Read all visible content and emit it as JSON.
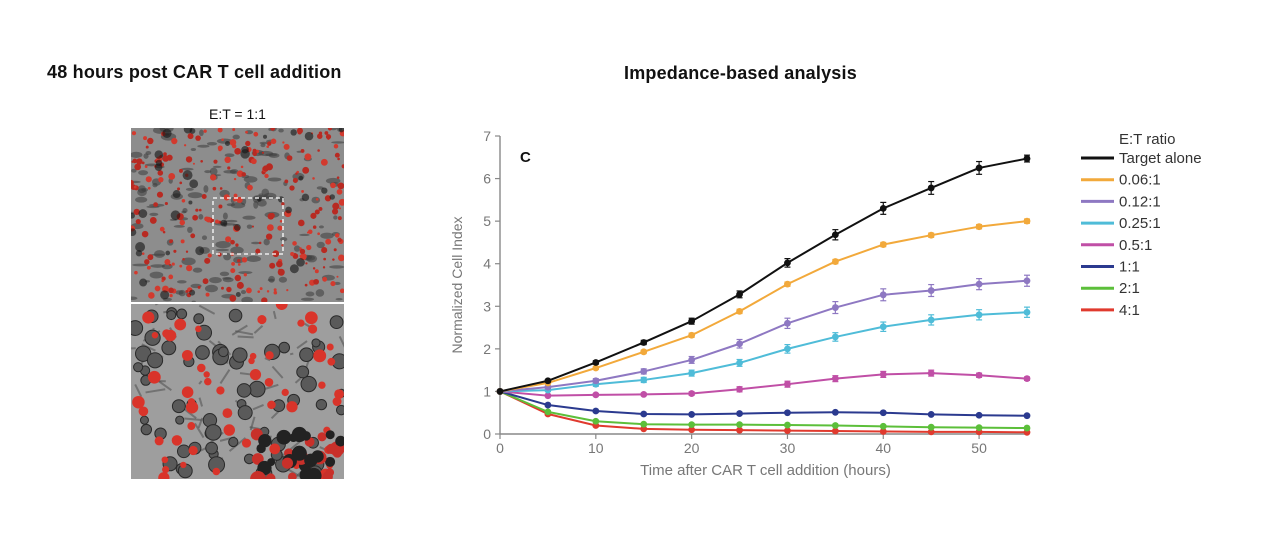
{
  "left_panel": {
    "title": "48 hours post CAR T cell addition",
    "condition_label": "E:T = 1:1"
  },
  "right_panel": {
    "title": "Impedance-based analysis"
  },
  "chart_data": {
    "type": "line",
    "panel_label": "C",
    "xlabel": "Time after CAR T cell addition (hours)",
    "ylabel": "Normalized Cell Index",
    "xlim": [
      0,
      55
    ],
    "ylim": [
      0,
      7
    ],
    "xticks": [
      0,
      10,
      20,
      30,
      40,
      50
    ],
    "yticks": [
      0,
      1,
      2,
      3,
      4,
      5,
      6,
      7
    ],
    "legend_title": "E:T ratio",
    "legend_position": "right",
    "x": [
      0,
      5,
      10,
      15,
      20,
      25,
      30,
      35,
      40,
      45,
      50,
      55
    ],
    "series": [
      {
        "name": "Target alone",
        "color": "#111111",
        "values": [
          1.0,
          1.25,
          1.68,
          2.15,
          2.65,
          3.28,
          4.02,
          4.68,
          5.3,
          5.78,
          6.25,
          6.47
        ],
        "errors": [
          0,
          0.03,
          0.04,
          0.05,
          0.07,
          0.08,
          0.1,
          0.12,
          0.14,
          0.15,
          0.15,
          0.08
        ]
      },
      {
        "name": "0.06:1",
        "color": "#f2a93b",
        "values": [
          1.0,
          1.2,
          1.55,
          1.93,
          2.32,
          2.88,
          3.52,
          4.05,
          4.45,
          4.67,
          4.87,
          5.0
        ],
        "errors": [
          0,
          0.02,
          0.03,
          0.04,
          0.05,
          0.05,
          0.05,
          0.05,
          0.05,
          0.05,
          0.05,
          0.05
        ]
      },
      {
        "name": "0.12:1",
        "color": "#8e78c2",
        "values": [
          1.0,
          1.1,
          1.25,
          1.47,
          1.74,
          2.12,
          2.6,
          2.97,
          3.27,
          3.37,
          3.52,
          3.6
        ],
        "errors": [
          0,
          0.03,
          0.05,
          0.06,
          0.08,
          0.1,
          0.12,
          0.14,
          0.14,
          0.14,
          0.13,
          0.13
        ]
      },
      {
        "name": "0.25:1",
        "color": "#4fbcd8",
        "values": [
          1.0,
          1.03,
          1.17,
          1.27,
          1.43,
          1.67,
          2.0,
          2.28,
          2.52,
          2.68,
          2.8,
          2.86
        ],
        "errors": [
          0,
          0.03,
          0.05,
          0.06,
          0.07,
          0.08,
          0.1,
          0.1,
          0.11,
          0.12,
          0.12,
          0.12
        ]
      },
      {
        "name": "0.5:1",
        "color": "#c04fa6",
        "values": [
          1.0,
          0.9,
          0.92,
          0.93,
          0.95,
          1.05,
          1.17,
          1.3,
          1.4,
          1.43,
          1.38,
          1.3
        ],
        "errors": [
          0,
          0.02,
          0.03,
          0.03,
          0.04,
          0.06,
          0.07,
          0.07,
          0.07,
          0.07,
          0.05,
          0.04
        ]
      },
      {
        "name": "1:1",
        "color": "#2b3a8f",
        "values": [
          1.0,
          0.68,
          0.54,
          0.47,
          0.46,
          0.48,
          0.5,
          0.51,
          0.5,
          0.46,
          0.44,
          0.43
        ],
        "errors": [
          0,
          0.02,
          0.02,
          0.02,
          0.02,
          0.02,
          0.02,
          0.02,
          0.02,
          0.02,
          0.02,
          0.02
        ]
      },
      {
        "name": "2:1",
        "color": "#5cbf3a",
        "values": [
          1.0,
          0.52,
          0.3,
          0.23,
          0.22,
          0.22,
          0.21,
          0.2,
          0.18,
          0.16,
          0.15,
          0.14
        ],
        "errors": [
          0,
          0.02,
          0.02,
          0.02,
          0.02,
          0.02,
          0.02,
          0.02,
          0.02,
          0.02,
          0.02,
          0.02
        ]
      },
      {
        "name": "4:1",
        "color": "#e03a2e",
        "values": [
          1.0,
          0.47,
          0.2,
          0.12,
          0.1,
          0.09,
          0.08,
          0.07,
          0.06,
          0.05,
          0.05,
          0.04
        ],
        "errors": [
          0,
          0.02,
          0.02,
          0.01,
          0.01,
          0.01,
          0.01,
          0.01,
          0.01,
          0.01,
          0.01,
          0.01
        ]
      }
    ],
    "grid": false
  }
}
